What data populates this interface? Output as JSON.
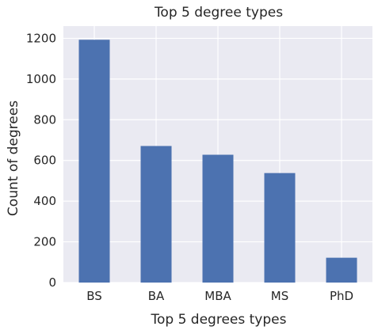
{
  "chart_data": {
    "type": "bar",
    "title": "Top 5 degree types",
    "xlabel": "Top 5 degrees types",
    "ylabel": "Count of degrees",
    "categories": [
      "BS",
      "BA",
      "MBA",
      "MS",
      "PhD"
    ],
    "values": [
      1193,
      671,
      628,
      538,
      122
    ],
    "ylim": [
      0,
      1260
    ],
    "yticks": [
      0,
      200,
      400,
      600,
      800,
      1000,
      1200
    ],
    "grid": true,
    "legend": "none",
    "colors": {
      "bar": "#4c72b0",
      "plot_background": "#eaeaf2",
      "grid": "#ffffff"
    }
  }
}
